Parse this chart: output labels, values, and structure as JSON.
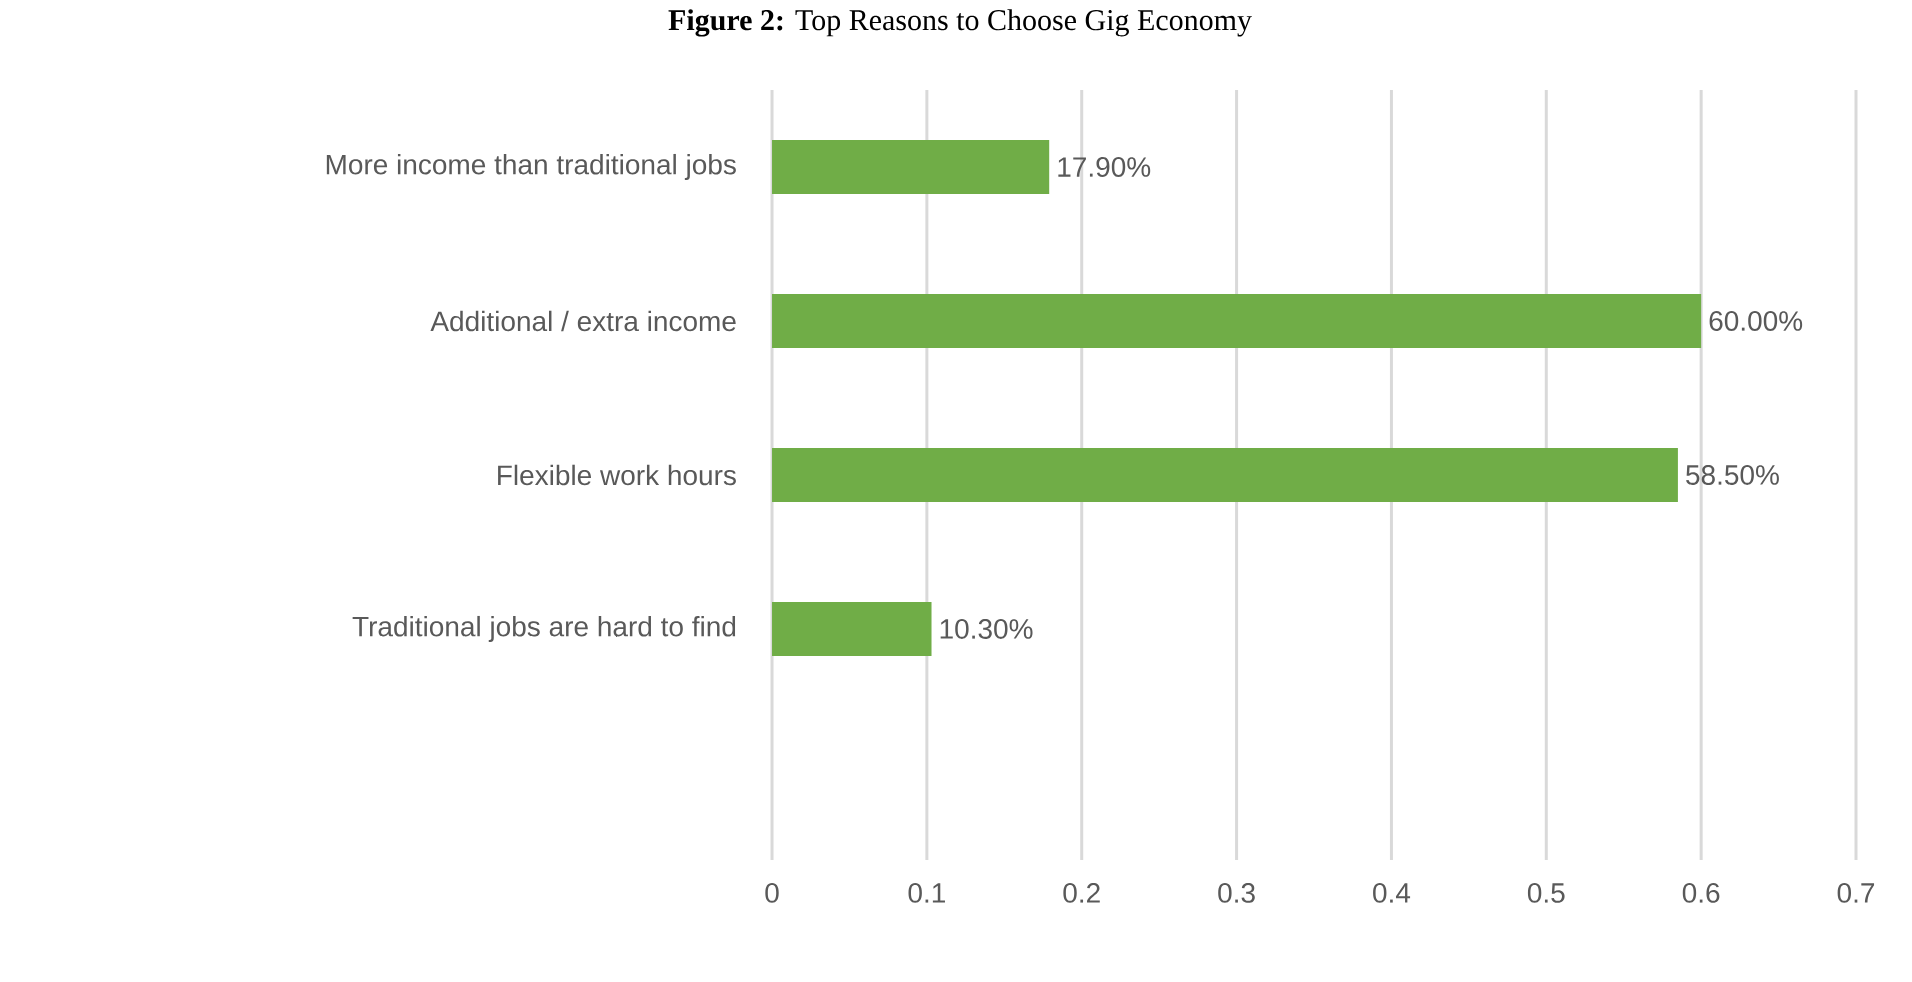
{
  "chart_data": {
    "type": "bar",
    "orientation": "horizontal",
    "title": "**Figure 2:** Top Reasons to Choose Gig Economy",
    "categories": [
      "More income than traditional jobs",
      "Additional / extra income",
      "Flexible work hours",
      "Traditional jobs are hard to find",
      null
    ],
    "values": [
      0.179,
      0.6,
      0.585,
      0.103,
      null
    ],
    "value_labels": [
      "17.90%",
      "60.00%",
      "58.50%",
      "10.30%",
      null
    ],
    "color": "#70ad47",
    "xlim": [
      0,
      0.7
    ],
    "xticks": [
      0,
      0.1,
      0.2,
      0.3,
      0.4,
      0.5,
      0.6,
      0.7
    ],
    "grid": "x"
  }
}
